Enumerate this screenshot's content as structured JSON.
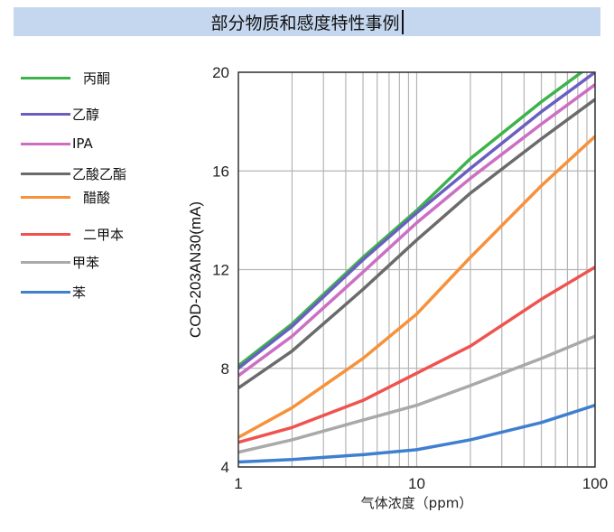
{
  "title": "部分物质和感度特性事例",
  "chart_data": {
    "type": "line",
    "title": "部分物质和感度特性事例",
    "xlabel": "气体浓度（ppm）",
    "ylabel": "COD-203AN30(mA)",
    "xscale": "log",
    "xlim": [
      1,
      100
    ],
    "ylim": [
      4,
      20
    ],
    "xticks": [
      "1",
      "10",
      "100"
    ],
    "yticks": [
      "4",
      "8",
      "12",
      "16",
      "20"
    ],
    "grid": true,
    "legend_position": "left",
    "x": [
      1,
      2,
      5,
      10,
      20,
      50,
      100
    ],
    "series": [
      {
        "name": "丙酮",
        "color": "#3cb44b",
        "values": [
          8.1,
          9.8,
          12.5,
          14.4,
          16.5,
          18.8,
          20.4
        ]
      },
      {
        "name": "乙醇",
        "color": "#6a5fc1",
        "values": [
          8.0,
          9.7,
          12.4,
          14.3,
          16.1,
          18.4,
          20.0
        ]
      },
      {
        "name": "IPA",
        "color": "#cc6fc4",
        "values": [
          7.7,
          9.3,
          11.9,
          13.9,
          15.7,
          17.9,
          19.5
        ]
      },
      {
        "name": "乙酸乙酯",
        "color": "#6b6b6b",
        "values": [
          7.2,
          8.7,
          11.2,
          13.2,
          15.1,
          17.3,
          18.9
        ]
      },
      {
        "name": "醋酸",
        "color": "#f7913a",
        "values": [
          5.2,
          6.4,
          8.4,
          10.2,
          12.5,
          15.4,
          17.4
        ]
      },
      {
        "name": "二甲本",
        "color": "#ef5350",
        "values": [
          5.0,
          5.6,
          6.7,
          7.8,
          8.9,
          10.8,
          12.1
        ]
      },
      {
        "name": "甲苯",
        "color": "#a9a9a9",
        "values": [
          4.6,
          5.1,
          5.9,
          6.5,
          7.3,
          8.4,
          9.3
        ]
      },
      {
        "name": "苯",
        "color": "#3f7fcf",
        "values": [
          4.2,
          4.3,
          4.5,
          4.7,
          5.1,
          5.8,
          6.5
        ]
      }
    ]
  }
}
